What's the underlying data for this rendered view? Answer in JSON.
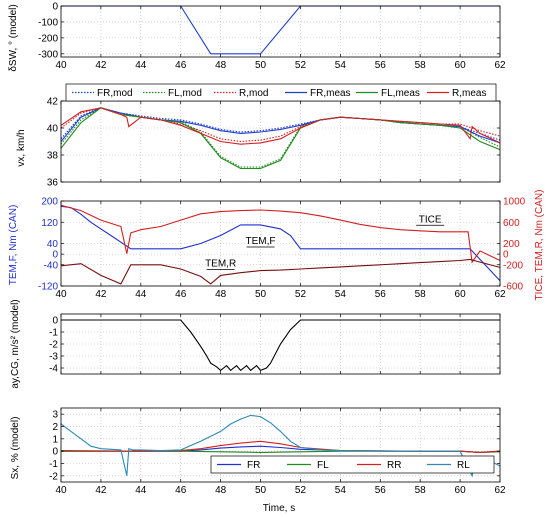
{
  "xlabel": "Time, s",
  "chart_data": [
    {
      "type": "line",
      "ylabel": "δSW, ° (model)",
      "xlim": [
        40,
        62
      ],
      "xticks": [
        40,
        42,
        44,
        46,
        48,
        50,
        52,
        54,
        56,
        58,
        60,
        62
      ],
      "ylim": [
        -320,
        0
      ],
      "yticks": [
        0,
        -100,
        -200,
        -300
      ],
      "grid": true,
      "series": [
        {
          "color": "#1f3fcf",
          "style": "solid",
          "x": [
            40,
            46,
            47.5,
            50,
            52,
            62
          ],
          "y": [
            0,
            0,
            -300,
            -300,
            0,
            0
          ]
        }
      ]
    },
    {
      "type": "line",
      "ylabel": "vx, km/h",
      "xlim": [
        40,
        62
      ],
      "ylim": [
        36,
        42
      ],
      "yticks": [
        36,
        38,
        40,
        42
      ],
      "grid": true,
      "legend": {
        "position": "top",
        "columns": 3
      },
      "series": [
        {
          "name": "FR,mod",
          "color": "#1f3fcf",
          "style": "dotted",
          "x": [
            40,
            41,
            42,
            43,
            44,
            45,
            46,
            47,
            48,
            49,
            50,
            51,
            52,
            53,
            54,
            55,
            56,
            57,
            58,
            59,
            60,
            61,
            62
          ],
          "y": [
            39.2,
            40.9,
            41.5,
            41.1,
            40.9,
            40.7,
            40.6,
            40.3,
            39.9,
            39.7,
            39.8,
            40.0,
            40.3,
            40.6,
            40.8,
            40.7,
            40.6,
            40.4,
            40.3,
            40.2,
            40.1,
            39.6,
            39.1
          ]
        },
        {
          "name": "FL,mod",
          "color": "#1e8c1e",
          "style": "dotted",
          "x": [
            40,
            41,
            42,
            43,
            44,
            45,
            46,
            47,
            48,
            49,
            50,
            51,
            52,
            53,
            54,
            55,
            56,
            57,
            58,
            59,
            60,
            61,
            62
          ],
          "y": [
            38.8,
            40.6,
            41.5,
            41.0,
            40.8,
            40.6,
            40.5,
            39.7,
            37.9,
            37.1,
            37.1,
            37.7,
            40.1,
            40.6,
            40.8,
            40.7,
            40.6,
            40.4,
            40.3,
            40.2,
            40.1,
            39.3,
            38.6
          ]
        },
        {
          "name": "R,mod",
          "color": "#d42020",
          "style": "dotted",
          "x": [
            40,
            41,
            42,
            43,
            44,
            45,
            46,
            47,
            48,
            49,
            50,
            51,
            52,
            53,
            54,
            55,
            56,
            57,
            58,
            59,
            60,
            61,
            62
          ],
          "y": [
            40.0,
            41.1,
            41.5,
            41.0,
            40.8,
            40.6,
            40.3,
            39.8,
            39.2,
            39.0,
            39.1,
            39.4,
            40.1,
            40.6,
            40.8,
            40.7,
            40.6,
            40.5,
            40.4,
            40.3,
            40.3,
            39.8,
            39.4
          ]
        },
        {
          "name": "FR,meas",
          "color": "#1f3fcf",
          "style": "solid",
          "x": [
            40,
            41,
            42,
            43,
            44,
            45,
            46,
            47,
            48,
            49,
            50,
            51,
            52,
            53,
            54,
            55,
            56,
            57,
            58,
            59,
            60,
            61,
            62
          ],
          "y": [
            39.0,
            40.8,
            41.5,
            41.1,
            40.8,
            40.6,
            40.5,
            40.2,
            39.8,
            39.6,
            39.7,
            39.9,
            40.2,
            40.6,
            40.8,
            40.7,
            40.6,
            40.4,
            40.3,
            40.2,
            40.1,
            39.4,
            38.9
          ]
        },
        {
          "name": "FL,meas",
          "color": "#1e8c1e",
          "style": "solid",
          "x": [
            40,
            41,
            42,
            43,
            44,
            45,
            46,
            47,
            48,
            49,
            50,
            51,
            52,
            53,
            54,
            55,
            56,
            57,
            58,
            59,
            60,
            61,
            62
          ],
          "y": [
            38.5,
            40.4,
            41.5,
            41.0,
            40.8,
            40.6,
            40.4,
            39.6,
            37.8,
            37.0,
            37.0,
            37.6,
            40.0,
            40.6,
            40.8,
            40.7,
            40.6,
            40.4,
            40.3,
            40.2,
            40.0,
            39.0,
            38.4
          ]
        },
        {
          "name": "R,meas",
          "color": "#d42020",
          "style": "solid",
          "x": [
            40,
            41,
            42,
            43,
            43.3,
            43.4,
            44,
            45,
            46,
            47,
            48,
            49,
            50,
            51,
            52,
            53,
            54,
            55,
            56,
            57,
            58,
            59,
            60,
            60.5,
            60.6,
            61,
            62
          ],
          "y": [
            40.2,
            41.2,
            41.5,
            41.0,
            40.8,
            40.1,
            40.8,
            40.6,
            40.2,
            39.6,
            39.0,
            38.8,
            38.9,
            39.2,
            40.0,
            40.6,
            40.8,
            40.7,
            40.6,
            40.5,
            40.4,
            40.3,
            40.2,
            39.2,
            40.1,
            39.6,
            38.9
          ]
        }
      ]
    },
    {
      "type": "line",
      "ylabel": "TEM,F, Nm (CAN)",
      "ylabel_right": "TICE, TEM,R, Nm (CAN)",
      "xlim": [
        40,
        62
      ],
      "ylim": [
        -120,
        200
      ],
      "yticks": [
        -120,
        -40,
        0,
        40,
        120,
        200
      ],
      "ylim_right": [
        -600,
        1000
      ],
      "yticks_right": [
        -600,
        -200,
        0,
        200,
        600,
        1000
      ],
      "grid": true,
      "annotations": [
        {
          "text": "TICE",
          "x": 58.5,
          "y": 600
        },
        {
          "text": "TEM,F",
          "x": 50.0,
          "y": 190
        },
        {
          "text": "TEM,R",
          "x": 48.0,
          "y": -230
        }
      ],
      "series": [
        {
          "name": "TEM,F",
          "axis": "left",
          "color": "#2030d0",
          "style": "solid",
          "x": [
            40,
            40.5,
            41,
            41.5,
            42,
            42.5,
            43,
            43.5,
            44,
            45,
            46,
            47,
            48,
            49,
            50,
            51,
            51.5,
            52,
            53,
            54,
            55,
            56,
            57,
            58,
            59,
            60,
            60.5,
            61,
            62
          ],
          "y": [
            180,
            175,
            150,
            120,
            95,
            70,
            45,
            20,
            20,
            20,
            20,
            40,
            70,
            110,
            110,
            95,
            70,
            20,
            20,
            20,
            20,
            20,
            20,
            20,
            20,
            20,
            20,
            -20,
            -100
          ]
        },
        {
          "name": "TICE",
          "axis": "right",
          "color": "#d42020",
          "style": "solid",
          "x": [
            40,
            41,
            42,
            43,
            43.3,
            43.5,
            44,
            45,
            46,
            47,
            48,
            49,
            50,
            51,
            52,
            53,
            54,
            55,
            56,
            57,
            58,
            59,
            60,
            60.4,
            60.6,
            61,
            62
          ],
          "y": [
            920,
            820,
            640,
            520,
            10,
            400,
            460,
            520,
            640,
            760,
            800,
            820,
            830,
            810,
            780,
            720,
            640,
            560,
            500,
            460,
            440,
            420,
            420,
            420,
            -150,
            60,
            -120
          ]
        },
        {
          "name": "TEM,R",
          "axis": "right",
          "color": "#7a0e0e",
          "style": "solid",
          "x": [
            40,
            41,
            42,
            43,
            43.5,
            44,
            45,
            46,
            47,
            47.5,
            48,
            49,
            50,
            51,
            52,
            53,
            54,
            55,
            56,
            57,
            58,
            59,
            60,
            60.5,
            61,
            62
          ],
          "y": [
            -220,
            -180,
            -400,
            -560,
            -200,
            -200,
            -200,
            -280,
            -420,
            -560,
            -400,
            -350,
            -310,
            -300,
            -280,
            -260,
            -240,
            -220,
            -200,
            -180,
            -160,
            -140,
            -120,
            -100,
            -150,
            -250
          ]
        }
      ]
    },
    {
      "type": "line",
      "ylabel": "ay,CG, m/s² (model)",
      "xlim": [
        40,
        62
      ],
      "ylim": [
        -4.5,
        0.5
      ],
      "yticks": [
        -4,
        -3,
        -2,
        -1,
        0
      ],
      "grid": true,
      "series": [
        {
          "color": "#000000",
          "style": "solid",
          "x": [
            40,
            46,
            46.5,
            47,
            47.3,
            47.5,
            47.8,
            48.0,
            48.3,
            48.5,
            48.8,
            49.0,
            49.3,
            49.5,
            49.8,
            50.0,
            50.3,
            50.5,
            51,
            51.5,
            52,
            62
          ],
          "y": [
            0,
            0,
            -1.0,
            -2.2,
            -3.0,
            -3.6,
            -3.9,
            -4.2,
            -3.8,
            -4.2,
            -3.8,
            -4.2,
            -3.8,
            -4.2,
            -3.8,
            -4.2,
            -4.0,
            -3.6,
            -2.0,
            -0.8,
            0,
            0
          ]
        }
      ]
    },
    {
      "type": "line",
      "ylabel": "Sx, % (model)",
      "xlim": [
        40,
        62
      ],
      "ylim": [
        -2.5,
        3.5
      ],
      "yticks": [
        -2,
        -1,
        0,
        1,
        2,
        3
      ],
      "grid": true,
      "legend": {
        "position": "bottom-center",
        "columns": 4
      },
      "series": [
        {
          "name": "FR",
          "color": "#2030d0",
          "style": "solid",
          "x": [
            40,
            44,
            46,
            47,
            48,
            49,
            50,
            51,
            52,
            54,
            58,
            60,
            61,
            62
          ],
          "y": [
            0.0,
            0.0,
            0.0,
            0.1,
            0.25,
            0.35,
            0.4,
            0.3,
            0.15,
            0.05,
            0.0,
            0.0,
            -0.1,
            0.0
          ]
        },
        {
          "name": "FL",
          "color": "#1e8c1e",
          "style": "solid",
          "x": [
            40,
            44,
            46,
            48,
            50,
            52,
            54,
            58,
            60,
            61,
            62
          ],
          "y": [
            0.05,
            0.0,
            0.0,
            -0.05,
            -0.1,
            -0.05,
            0.0,
            0.0,
            0.0,
            -0.1,
            -0.05
          ]
        },
        {
          "name": "RR",
          "color": "#d42020",
          "style": "solid",
          "x": [
            40,
            44,
            46,
            47,
            48,
            49,
            50,
            51,
            52,
            54,
            58,
            60,
            61,
            62
          ],
          "y": [
            0.0,
            0.0,
            0.05,
            0.2,
            0.45,
            0.65,
            0.8,
            0.6,
            0.3,
            0.05,
            0.0,
            0.0,
            -0.1,
            0.0
          ]
        },
        {
          "name": "RL",
          "color": "#2a8ab8",
          "style": "solid",
          "x": [
            40,
            40.5,
            41,
            41.5,
            42,
            43,
            43.3,
            43.4,
            43.6,
            44,
            45,
            46,
            47,
            48,
            48.5,
            49,
            49.5,
            50,
            50.5,
            51,
            51.5,
            52,
            53,
            54,
            56,
            58,
            60,
            60.6,
            60.8,
            61,
            61.5,
            62
          ],
          "y": [
            2.2,
            1.6,
            1.0,
            0.4,
            0.2,
            0.1,
            -2.0,
            0.2,
            0.1,
            0.1,
            0.05,
            0.1,
            0.8,
            1.6,
            2.2,
            2.6,
            2.9,
            2.8,
            2.3,
            1.6,
            0.8,
            0.3,
            0.1,
            0.05,
            0.0,
            0.0,
            0.0,
            -2.0,
            -0.5,
            -1.5,
            -0.8,
            -1.2
          ]
        }
      ]
    }
  ]
}
